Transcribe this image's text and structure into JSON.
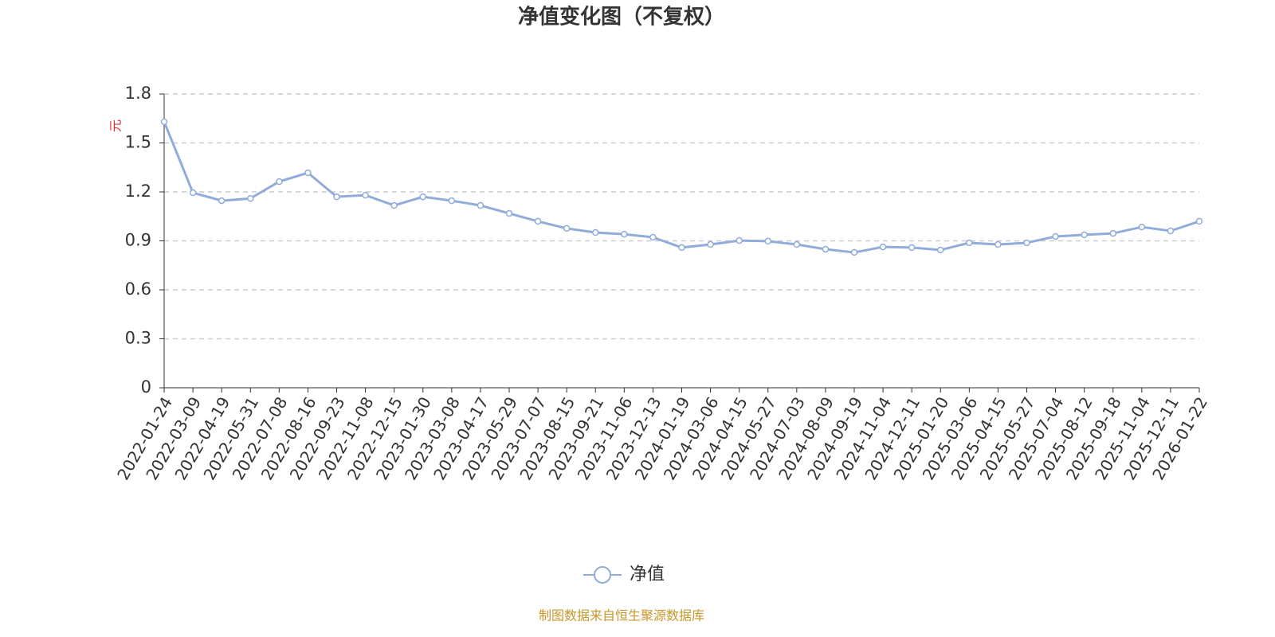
{
  "chart_data": {
    "type": "line",
    "title": "净值变化图（不复权）",
    "y_label": "元",
    "categories": [
      "2022-01-24",
      "2022-03-09",
      "2022-04-19",
      "2022-05-31",
      "2022-07-08",
      "2022-08-16",
      "2022-09-23",
      "2022-11-08",
      "2022-12-15",
      "2023-01-30",
      "2023-03-08",
      "2023-04-17",
      "2023-05-29",
      "2023-07-07",
      "2023-08-15",
      "2023-09-21",
      "2023-11-06",
      "2023-12-13",
      "2024-01-19",
      "2024-03-06",
      "2024-04-15",
      "2024-05-27",
      "2024-07-03",
      "2024-08-09",
      "2024-09-19",
      "2024-11-04",
      "2024-12-11",
      "2025-01-20",
      "2025-03-06",
      "2025-04-15",
      "2025-05-27",
      "2025-07-04",
      "2025-08-12",
      "2025-09-18",
      "2025-11-04",
      "2025-12-11",
      "2026-01-22"
    ],
    "series": [
      {
        "name": "净值",
        "color": "#91acd9",
        "values": [
          1.63,
          1.195,
          1.146,
          1.16,
          1.263,
          1.317,
          1.17,
          1.18,
          1.117,
          1.17,
          1.146,
          1.117,
          1.068,
          1.02,
          0.976,
          0.951,
          0.941,
          0.922,
          0.859,
          0.878,
          0.902,
          0.898,
          0.878,
          0.849,
          0.829,
          0.863,
          0.859,
          0.844,
          0.888,
          0.878,
          0.888,
          0.927,
          0.937,
          0.946,
          0.985,
          0.961,
          1.02
        ]
      }
    ],
    "ylim": [
      0,
      1.8
    ],
    "yticks": [
      0,
      0.3,
      0.6,
      0.9,
      1.2,
      1.5,
      1.8
    ],
    "grid": true,
    "legend": "bottom",
    "source": "制图数据来自恒生聚源数据库"
  }
}
